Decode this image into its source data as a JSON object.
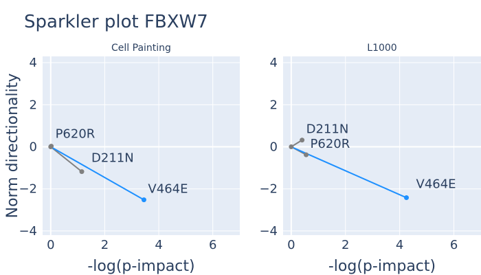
{
  "title": "Sparkler plot FBXW7",
  "ylabel": "Norm directionality",
  "colors": {
    "background": "#e5ecf6",
    "grid": "#ffffff",
    "highlight": "#1e90ff",
    "other": "#808080",
    "text": "#2a3f5f"
  },
  "chart_data": [
    {
      "type": "scatter",
      "title": "Cell Painting",
      "xlabel": "-log(p-impact)",
      "ylabel": "Norm directionality",
      "xlim": [
        -0.3,
        7
      ],
      "ylim": [
        -4.2,
        4.3
      ],
      "xticks": [
        0,
        2,
        4,
        6
      ],
      "yticks": [
        -4,
        -2,
        0,
        2,
        4
      ],
      "origin": [
        0,
        0
      ],
      "points": [
        {
          "label": "P620R",
          "x": 0.02,
          "y": 0.03,
          "highlight": false
        },
        {
          "label": "D211N",
          "x": 1.15,
          "y": -1.18,
          "highlight": false
        },
        {
          "label": "V464E",
          "x": 3.45,
          "y": -2.52,
          "highlight": true
        }
      ]
    },
    {
      "type": "scatter",
      "title": "L1000",
      "xlabel": "-log(p-impact)",
      "ylabel": "",
      "xlim": [
        -0.3,
        7
      ],
      "ylim": [
        -4.2,
        4.3
      ],
      "xticks": [
        0,
        2,
        4,
        6
      ],
      "yticks": [
        -4,
        -2,
        0,
        2,
        4
      ],
      "origin": [
        0,
        0
      ],
      "points": [
        {
          "label": "D211N",
          "x": 0.4,
          "y": 0.32,
          "highlight": false
        },
        {
          "label": "P620R",
          "x": 0.55,
          "y": -0.38,
          "highlight": false
        },
        {
          "label": "V464E",
          "x": 4.25,
          "y": -2.42,
          "highlight": true
        }
      ]
    }
  ]
}
